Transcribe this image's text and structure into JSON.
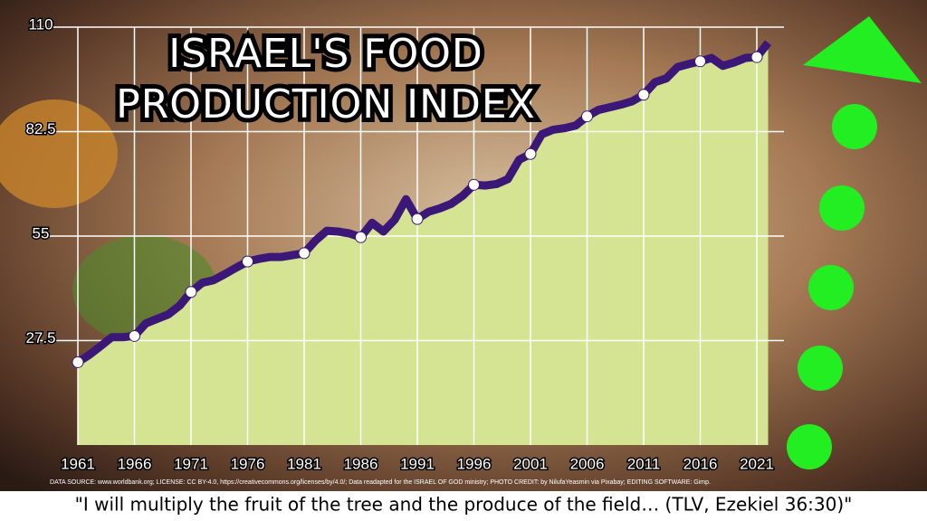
{
  "chart_data": {
    "type": "line",
    "title": [
      "ISRAEL'S FOOD",
      "PRODUCTION INDEX"
    ],
    "source_note": "DATA SOURCE: www.worldbank.org; LICENSE: CC BY-4.0, https://creativecommons.org/licenses/by/4.0/; Data readapted for the ISRAEL OF GOD ministry; PHOTO CREDIT: by NilufaYeasmin via Pixabay; EDITING SOFTWARE: Gimp.",
    "quote": "\"I will multiply the fruit of the tree and the produce of the field… (TLV, Ezekiel 36:30)\"",
    "x": [
      1961,
      1962,
      1963,
      1964,
      1965,
      1966,
      1967,
      1968,
      1969,
      1970,
      1971,
      1972,
      1973,
      1974,
      1975,
      1976,
      1977,
      1978,
      1979,
      1980,
      1981,
      1982,
      1983,
      1984,
      1985,
      1986,
      1987,
      1988,
      1989,
      1990,
      1991,
      1992,
      1993,
      1994,
      1995,
      1996,
      1997,
      1998,
      1999,
      2000,
      2001,
      2002,
      2003,
      2004,
      2005,
      2006,
      2007,
      2008,
      2009,
      2010,
      2011,
      2012,
      2013,
      2014,
      2015,
      2016,
      2017,
      2018,
      2019,
      2020,
      2021,
      2022
    ],
    "values": [
      21.8,
      23.7,
      26,
      28.4,
      28.4,
      28.7,
      32,
      33.2,
      34.4,
      36.7,
      40.3,
      42.7,
      43.4,
      45,
      46.7,
      48.3,
      49,
      49.5,
      49.5,
      50,
      50.5,
      53.8,
      56.4,
      56.2,
      55.7,
      54.7,
      58.5,
      56.2,
      59.3,
      64.7,
      59.5,
      61.4,
      62.3,
      63.5,
      65.6,
      68.5,
      68.3,
      68.7,
      70,
      75.1,
      76.6,
      81.8,
      83,
      83.4,
      84.1,
      86.5,
      88.2,
      88.9,
      89.6,
      90.5,
      92.2,
      95.5,
      96.5,
      99.5,
      100.3,
      101,
      101.9,
      99.8,
      100.7,
      101.9,
      102.1,
      105.9
    ],
    "color": "#3b1877",
    "area_color": "#d4e492",
    "xlim": [
      1961,
      2022
    ],
    "xticks": [
      1961,
      1966,
      1971,
      1976,
      1981,
      1986,
      1991,
      1996,
      2001,
      2006,
      2011,
      2016,
      2021
    ],
    "ylim": [
      0,
      110
    ],
    "yticks": [
      27.5,
      55,
      82.5,
      110
    ],
    "grid": true
  }
}
